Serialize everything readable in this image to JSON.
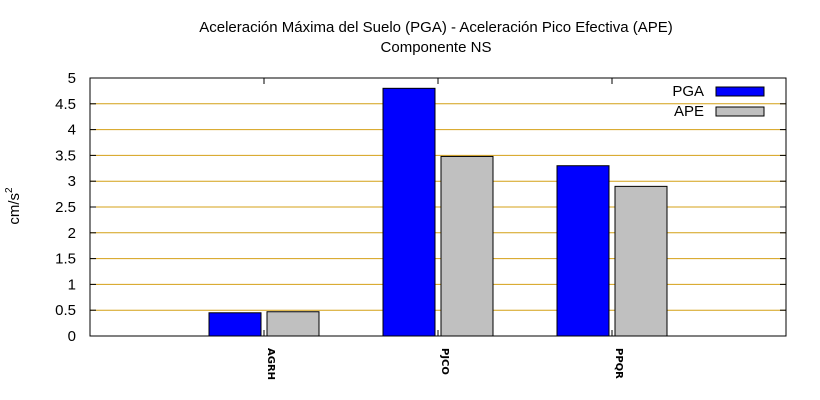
{
  "chart_data": {
    "type": "bar",
    "title_line1": "Aceleración Máxima del Suelo (PGA) -  Aceleración Pico Efectiva (APE)",
    "title_line2": "Componente NS",
    "ylabel": "cm/s",
    "ylabel_sup": "2",
    "xlabel": "",
    "ylim": [
      0,
      5
    ],
    "yticks": [
      "0",
      "0.5",
      "1",
      "1.5",
      "2",
      "2.5",
      "3",
      "3.5",
      "4",
      "4.5",
      "5"
    ],
    "ytick_values": [
      0,
      0.5,
      1,
      1.5,
      2,
      2.5,
      3,
      3.5,
      4,
      4.5,
      5
    ],
    "grid": true,
    "grid_color": "#d4a017",
    "legend_position": "top-right",
    "categories": [
      "AGRH",
      "PJCO",
      "PPQR"
    ],
    "series": [
      {
        "name": "PGA",
        "color": "#0000ff",
        "values": [
          0.45,
          4.8,
          3.3
        ]
      },
      {
        "name": "APE",
        "color": "#c0c0c0",
        "values": [
          0.47,
          3.48,
          2.9
        ]
      }
    ]
  }
}
